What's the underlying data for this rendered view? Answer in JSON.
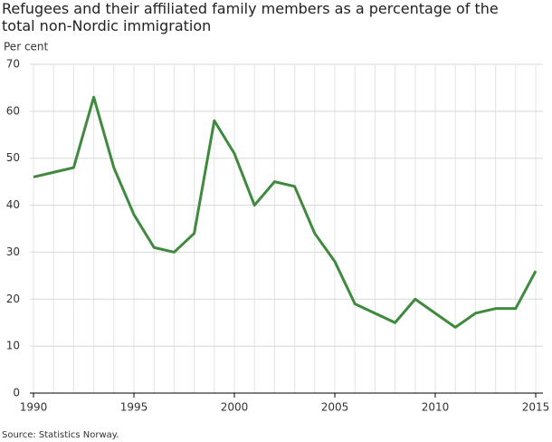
{
  "chart_data": {
    "type": "line",
    "title": "Refugees and their affiliated family members as a percentage of the total non-Nordic immigration",
    "y_label": "Per cent",
    "source": "Source: Statistics Norway.",
    "x": [
      1990,
      1991,
      1992,
      1993,
      1994,
      1995,
      1996,
      1997,
      1998,
      1999,
      2000,
      2001,
      2002,
      2003,
      2004,
      2005,
      2006,
      2007,
      2008,
      2009,
      2010,
      2011,
      2012,
      2013,
      2014,
      2015
    ],
    "series": [
      {
        "name": "Refugees and their affiliated family members",
        "color": "#3f8a3f",
        "values": [
          46,
          47,
          48,
          63,
          48,
          38,
          31,
          30,
          34,
          58,
          51,
          40,
          45,
          44,
          34,
          28,
          19,
          17,
          15,
          20,
          17,
          14,
          17,
          18,
          18,
          26
        ]
      }
    ],
    "xlim": [
      1990,
      2015
    ],
    "xticks": [
      1990,
      1995,
      2000,
      2005,
      2010,
      2015
    ],
    "ylim": [
      0,
      70
    ],
    "yticks": [
      0,
      10,
      20,
      30,
      40,
      50,
      60,
      70
    ],
    "grid": true,
    "legend": false
  }
}
